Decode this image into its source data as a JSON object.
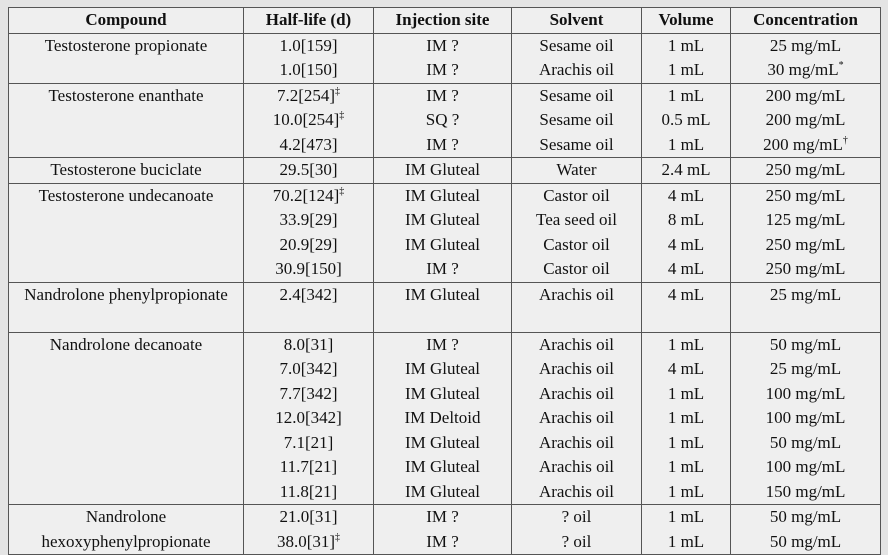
{
  "table": {
    "header": [
      "Compound",
      "Half-life (d)",
      "Injection site",
      "Solvent",
      "Volume",
      "Concentration"
    ],
    "groups": [
      {
        "compound": "Testosterone propionate",
        "rows": [
          [
            "1.0[159]",
            "IM ?",
            "Sesame oil",
            "1 mL",
            "25 mg/mL"
          ],
          [
            "1.0[150]",
            "IM ?",
            "Arachis oil",
            "1 mL",
            {
              "text": "30 mg/mL",
              "sup": "*"
            }
          ]
        ]
      },
      {
        "compound": "Testosterone enanthate",
        "rows": [
          [
            {
              "text": "7.2[254]",
              "sup": "‡"
            },
            "IM ?",
            "Sesame oil",
            "1 mL",
            "200 mg/mL"
          ],
          [
            {
              "text": "10.0[254]",
              "sup": "‡"
            },
            "SQ ?",
            "Sesame oil",
            "0.5 mL",
            "200 mg/mL"
          ],
          [
            "4.2[473]",
            "IM ?",
            "Sesame oil",
            "1 mL",
            {
              "text": "200 mg/mL",
              "sup": "†"
            }
          ]
        ]
      },
      {
        "compound": "Testosterone buciclate",
        "rows": [
          [
            "29.5[30]",
            "IM Gluteal",
            "Water",
            "2.4 mL",
            "250 mg/mL"
          ]
        ]
      },
      {
        "compound": "Testosterone undecanoate",
        "rows": [
          [
            {
              "text": "70.2[124]",
              "sup": "‡"
            },
            "IM Gluteal",
            "Castor oil",
            "4 mL",
            "250 mg/mL"
          ],
          [
            "33.9[29]",
            "IM Gluteal",
            "Tea seed oil",
            "8 mL",
            "125 mg/mL"
          ],
          [
            "20.9[29]",
            "IM Gluteal",
            "Castor oil",
            "4 mL",
            "250 mg/mL"
          ],
          [
            "30.9[150]",
            "IM ?",
            "Castor oil",
            "4 mL",
            "250 mg/mL"
          ]
        ]
      },
      {
        "compound": "Nandrolone phenylpropionate",
        "rows": [
          [
            "2.4[342]",
            "IM Gluteal",
            "Arachis oil",
            "4 mL",
            "25 mg/mL"
          ]
        ]
      },
      {
        "compound": "Nandrolone decanoate",
        "rows": [
          [
            "8.0[31]",
            "IM ?",
            "Arachis oil",
            "1 mL",
            "50 mg/mL"
          ],
          [
            "7.0[342]",
            "IM Gluteal",
            "Arachis oil",
            "4 mL",
            "25 mg/mL"
          ],
          [
            "7.7[342]",
            "IM Gluteal",
            "Arachis oil",
            "1 mL",
            "100 mg/mL"
          ],
          [
            "12.0[342]",
            "IM Deltoid",
            "Arachis oil",
            "1 mL",
            "100 mg/mL"
          ],
          [
            "7.1[21]",
            "IM Gluteal",
            "Arachis oil",
            "1 mL",
            "50 mg/mL"
          ],
          [
            "11.7[21]",
            "IM Gluteal",
            "Arachis oil",
            "1 mL",
            "100 mg/mL"
          ],
          [
            "11.8[21]",
            "IM Gluteal",
            "Arachis oil",
            "1 mL",
            "150 mg/mL"
          ]
        ]
      },
      {
        "compound": "Nandrolone hexoxyphenylpropionate",
        "rows": [
          [
            "21.0[31]",
            "IM ?",
            "? oil",
            "1 mL",
            "50 mg/mL"
          ],
          [
            {
              "text": "38.0[31]",
              "sup": "‡"
            },
            "IM ?",
            "? oil",
            "1 mL",
            "50 mg/mL"
          ]
        ]
      }
    ]
  }
}
